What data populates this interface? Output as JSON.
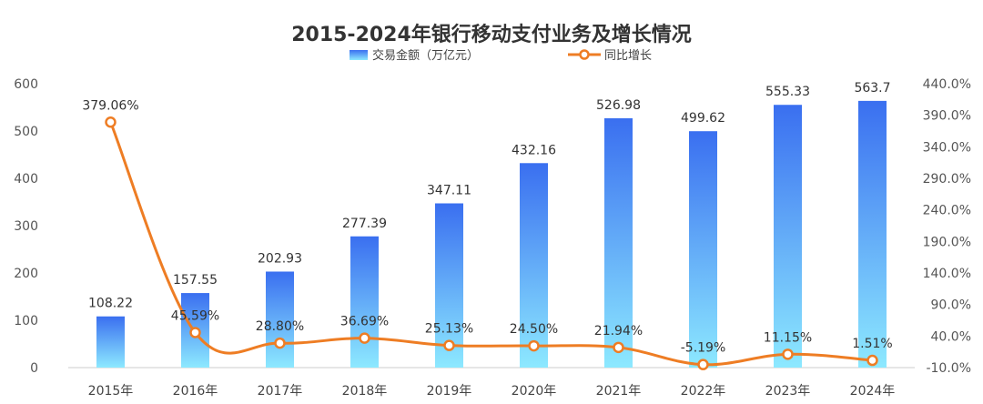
{
  "chart_data": {
    "type": "bar+line",
    "title": "2015-2024年银行移动支付业务及增长情况",
    "categories": [
      "2015年",
      "2016年",
      "2017年",
      "2018年",
      "2019年",
      "2020年",
      "2021年",
      "2022年",
      "2023年",
      "2024年"
    ],
    "series": [
      {
        "name": "交易金额（万亿元）",
        "type": "bar",
        "axis": "left",
        "values": [
          108.22,
          157.55,
          202.93,
          277.39,
          347.11,
          432.16,
          526.98,
          499.62,
          555.33,
          563.7
        ],
        "labels": [
          "108.22",
          "157.55",
          "202.93",
          "277.39",
          "347.11",
          "432.16",
          "526.98",
          "499.62",
          "555.33",
          "563.7"
        ]
      },
      {
        "name": "同比增长",
        "type": "line",
        "axis": "right",
        "values": [
          379.06,
          45.59,
          28.8,
          36.69,
          25.13,
          24.5,
          21.94,
          -5.19,
          11.15,
          1.51
        ],
        "labels": [
          "379.06%",
          "45.59%",
          "28.80%",
          "36.69%",
          "25.13%",
          "24.50%",
          "21.94%",
          "-5.19%",
          "11.15%",
          "1.51%"
        ]
      }
    ],
    "y_left": {
      "min": 0,
      "max": 600,
      "ticks": [
        "0",
        "100",
        "200",
        "300",
        "400",
        "500",
        "600"
      ]
    },
    "y_right": {
      "min": -10,
      "max": 440,
      "ticks": [
        "-10.0%",
        "40.0%",
        "90.0%",
        "140.0%",
        "190.0%",
        "240.0%",
        "290.0%",
        "340.0%",
        "390.0%",
        "440.0%"
      ]
    },
    "legend_position": "top-center",
    "grid": false,
    "colors": {
      "bar_top": "#3a6ff0",
      "bar_bottom": "#8de9ff",
      "line": "#ee7d24",
      "axis": "#cccccc"
    }
  }
}
